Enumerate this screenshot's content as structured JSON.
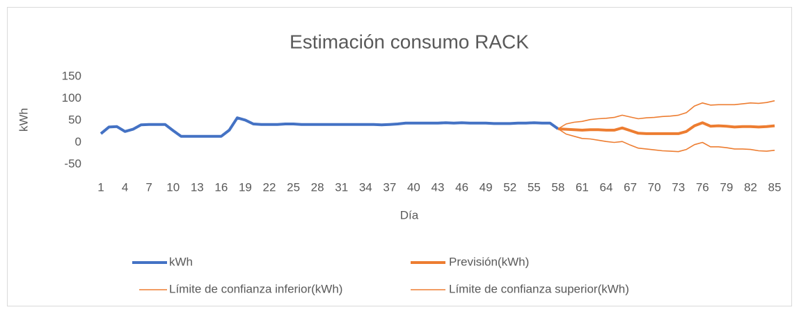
{
  "chart_data": {
    "type": "line",
    "title": "Estimación consumo RACK",
    "x_label": "Día",
    "y_label": "kWh",
    "categories": [
      1,
      null,
      null,
      4,
      null,
      null,
      7,
      null,
      null,
      10,
      null,
      null,
      13,
      null,
      null,
      16,
      null,
      null,
      19,
      null,
      null,
      22,
      null,
      null,
      25,
      null,
      null,
      28,
      null,
      null,
      31,
      null,
      null,
      34,
      null,
      null,
      37,
      null,
      null,
      40,
      null,
      null,
      43,
      null,
      null,
      46,
      null,
      null,
      49,
      null,
      null,
      52,
      null,
      null,
      55,
      null,
      null,
      58,
      null,
      null,
      61,
      null,
      null,
      64,
      null,
      null,
      67,
      null,
      null,
      70,
      null,
      null,
      73,
      null,
      null,
      76,
      null,
      null,
      79,
      null,
      null,
      82,
      null,
      null,
      85
    ],
    "ylim": [
      -50,
      150
    ],
    "yticks": [
      -50,
      0,
      50,
      100,
      150
    ],
    "grid": false,
    "series": [
      {
        "name": "kWh",
        "color": "#4472c4",
        "width": 4,
        "values": [
          20,
          35,
          36,
          25,
          30,
          40,
          41,
          41,
          41,
          27,
          14,
          14,
          14,
          14,
          14,
          14,
          28,
          56,
          51,
          42,
          41,
          41,
          41,
          42,
          42,
          41,
          41,
          41,
          41,
          41,
          41,
          41,
          41,
          41,
          41,
          40,
          41,
          42,
          44,
          44,
          44,
          44,
          44,
          45,
          44,
          45,
          44,
          44,
          44,
          43,
          43,
          43,
          44,
          44,
          45,
          44,
          44,
          31,
          null,
          null,
          null,
          null,
          null,
          null,
          null,
          null,
          null,
          null,
          null,
          null,
          null,
          null,
          null,
          null,
          null,
          null,
          null,
          null,
          null,
          null,
          null,
          null,
          null,
          null,
          null
        ]
      },
      {
        "name": "Previsión(kWh)",
        "color": "#ed7d31",
        "width": 4,
        "values": [
          null,
          null,
          null,
          null,
          null,
          null,
          null,
          null,
          null,
          null,
          null,
          null,
          null,
          null,
          null,
          null,
          null,
          null,
          null,
          null,
          null,
          null,
          null,
          null,
          null,
          null,
          null,
          null,
          null,
          null,
          null,
          null,
          null,
          null,
          null,
          null,
          null,
          null,
          null,
          null,
          null,
          null,
          null,
          null,
          null,
          null,
          null,
          null,
          null,
          null,
          null,
          null,
          null,
          null,
          null,
          null,
          null,
          31,
          30,
          29,
          28,
          29,
          29,
          28,
          28,
          33,
          27,
          21,
          20,
          20,
          20,
          20,
          20,
          25,
          38,
          45,
          37,
          38,
          37,
          35,
          36,
          36,
          35,
          36,
          38
        ]
      },
      {
        "name": "Límite de confianza inferior(kWh)",
        "color": "#ed7d31",
        "width": 1.6,
        "values": [
          null,
          null,
          null,
          null,
          null,
          null,
          null,
          null,
          null,
          null,
          null,
          null,
          null,
          null,
          null,
          null,
          null,
          null,
          null,
          null,
          null,
          null,
          null,
          null,
          null,
          null,
          null,
          null,
          null,
          null,
          null,
          null,
          null,
          null,
          null,
          null,
          null,
          null,
          null,
          null,
          null,
          null,
          null,
          null,
          null,
          null,
          null,
          null,
          null,
          null,
          null,
          null,
          null,
          null,
          null,
          null,
          null,
          31,
          19,
          14,
          9,
          8,
          5,
          2,
          0,
          2,
          -6,
          -13,
          -15,
          -17,
          -19,
          -20,
          -21,
          -16,
          -5,
          0,
          -10,
          -10,
          -12,
          -15,
          -15,
          -16,
          -19,
          -20,
          -18
        ]
      },
      {
        "name": "Límite de confianza superior(kWh)",
        "color": "#ed7d31",
        "width": 1.6,
        "values": [
          null,
          null,
          null,
          null,
          null,
          null,
          null,
          null,
          null,
          null,
          null,
          null,
          null,
          null,
          null,
          null,
          null,
          null,
          null,
          null,
          null,
          null,
          null,
          null,
          null,
          null,
          null,
          null,
          null,
          null,
          null,
          null,
          null,
          null,
          null,
          null,
          null,
          null,
          null,
          null,
          null,
          null,
          null,
          null,
          null,
          null,
          null,
          null,
          null,
          null,
          null,
          null,
          null,
          null,
          null,
          null,
          null,
          31,
          42,
          46,
          48,
          52,
          54,
          55,
          57,
          62,
          58,
          54,
          56,
          57,
          59,
          60,
          62,
          68,
          83,
          90,
          85,
          86,
          86,
          86,
          88,
          90,
          89,
          91,
          95
        ]
      }
    ]
  }
}
